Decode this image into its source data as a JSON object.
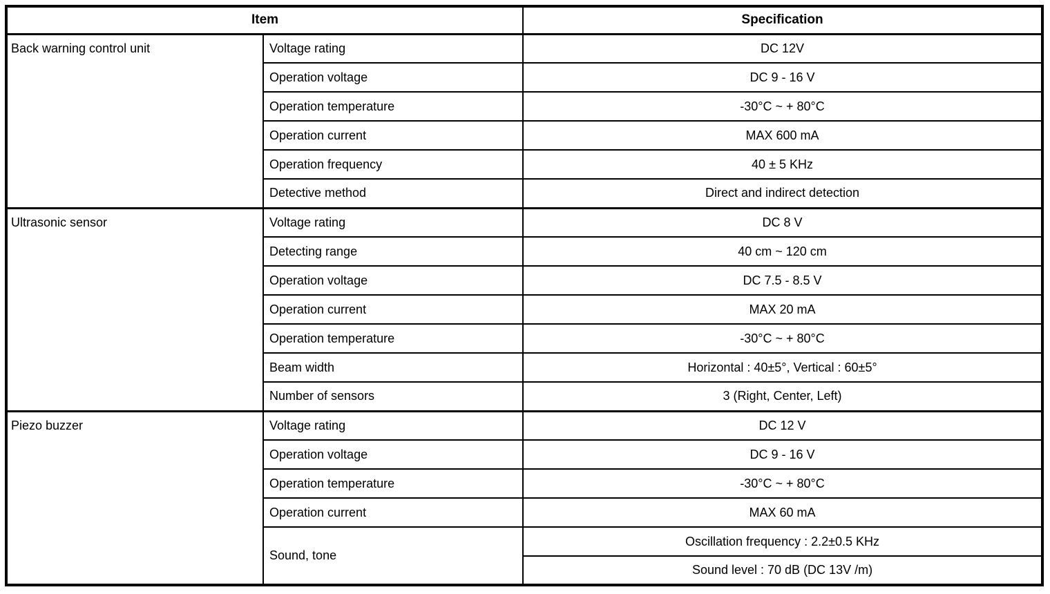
{
  "table": {
    "headers": {
      "item": "Item",
      "specification": "Specification"
    },
    "groups": [
      {
        "name": "Back warning control unit",
        "rows": [
          {
            "label": "Voltage rating",
            "spec": "DC 12V"
          },
          {
            "label": "Operation voltage",
            "spec": "DC 9 - 16 V"
          },
          {
            "label": "Operation temperature",
            "spec": "-30°C ~ + 80°C"
          },
          {
            "label": "Operation current",
            "spec": "MAX 600 mA"
          },
          {
            "label": "Operation frequency",
            "spec": "40 ± 5 KHz"
          },
          {
            "label": "Detective method",
            "spec": "Direct and indirect detection"
          }
        ]
      },
      {
        "name": "Ultrasonic sensor",
        "rows": [
          {
            "label": "Voltage rating",
            "spec": "DC 8 V"
          },
          {
            "label": "Detecting range",
            "spec": "40 cm ~ 120 cm"
          },
          {
            "label": "Operation voltage",
            "spec": "DC 7.5 - 8.5 V"
          },
          {
            "label": "Operation current",
            "spec": "MAX 20 mA"
          },
          {
            "label": "Operation temperature",
            "spec": "-30°C ~ + 80°C"
          },
          {
            "label": "Beam width",
            "spec": "Horizontal : 40±5°, Vertical : 60±5°"
          },
          {
            "label": "Number of sensors",
            "spec": "3 (Right, Center, Left)"
          }
        ]
      },
      {
        "name": "Piezo buzzer",
        "rows": [
          {
            "label": "Voltage rating",
            "spec": "DC 12 V"
          },
          {
            "label": "Operation voltage",
            "spec": "DC 9 - 16 V"
          },
          {
            "label": "Operation temperature",
            "spec": "-30°C ~ + 80°C"
          },
          {
            "label": "Operation current",
            "spec": "MAX 60 mA"
          },
          {
            "label": "Sound, tone",
            "specs": [
              "Oscillation frequency : 2.2±0.5 KHz",
              "Sound level : 70 dB (DC 13V /m)"
            ]
          }
        ]
      }
    ]
  }
}
